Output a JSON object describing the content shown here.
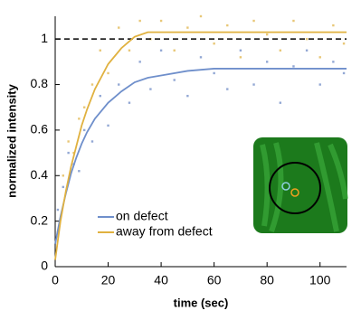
{
  "chart_data": {
    "type": "line",
    "xlabel": "time (sec)",
    "ylabel": "normalized intensity",
    "xlim": [
      0,
      110
    ],
    "ylim": [
      0,
      1.1
    ],
    "xticks": [
      0,
      20,
      40,
      60,
      80,
      100
    ],
    "yticks": [
      0,
      0.2,
      0.4,
      0.6,
      0.8,
      1
    ],
    "reference_line": 1,
    "x": [
      0,
      2,
      4,
      6,
      8,
      10,
      12,
      15,
      20,
      25,
      30,
      35,
      40,
      50,
      60,
      70,
      80,
      90,
      100,
      110
    ],
    "series": [
      {
        "name": "on defect",
        "color": "#6f8fcb",
        "values": [
          0.1,
          0.22,
          0.32,
          0.41,
          0.48,
          0.54,
          0.59,
          0.65,
          0.72,
          0.77,
          0.81,
          0.83,
          0.84,
          0.86,
          0.87,
          0.87,
          0.87,
          0.87,
          0.87,
          0.87
        ]
      },
      {
        "name": "away from defect",
        "color": "#e0b13f",
        "values": [
          0.03,
          0.2,
          0.33,
          0.44,
          0.53,
          0.62,
          0.69,
          0.78,
          0.89,
          0.96,
          1.01,
          1.03,
          1.03,
          1.03,
          1.03,
          1.03,
          1.03,
          1.03,
          1.03,
          1.03
        ]
      }
    ],
    "scatter": [
      {
        "color": "#93a8d4",
        "x": [
          1,
          3,
          5,
          7,
          9,
          11,
          14,
          17,
          20,
          24,
          28,
          32,
          36,
          40,
          45,
          50,
          55,
          60,
          65,
          70,
          75,
          80,
          85,
          90,
          95,
          100,
          105,
          109
        ],
        "values": [
          0.25,
          0.35,
          0.5,
          0.45,
          0.42,
          0.6,
          0.55,
          0.75,
          0.62,
          0.8,
          0.72,
          0.9,
          0.78,
          0.95,
          0.82,
          0.75,
          0.92,
          0.85,
          0.78,
          0.95,
          0.8,
          0.9,
          0.72,
          0.88,
          0.95,
          0.8,
          0.9,
          0.85
        ]
      },
      {
        "color": "#e8c777",
        "x": [
          1,
          3,
          5,
          7,
          9,
          11,
          14,
          17,
          20,
          24,
          28,
          32,
          36,
          40,
          45,
          50,
          55,
          60,
          65,
          70,
          75,
          80,
          85,
          90,
          95,
          100,
          105,
          109
        ],
        "values": [
          0.15,
          0.4,
          0.55,
          0.5,
          0.65,
          0.7,
          0.8,
          0.95,
          0.85,
          1.05,
          0.95,
          1.08,
          1.0,
          1.08,
          0.95,
          1.05,
          1.1,
          0.98,
          1.06,
          0.92,
          1.08,
          1.02,
          0.95,
          1.08,
          1.0,
          0.92,
          1.06,
          0.98
        ]
      }
    ]
  }
}
